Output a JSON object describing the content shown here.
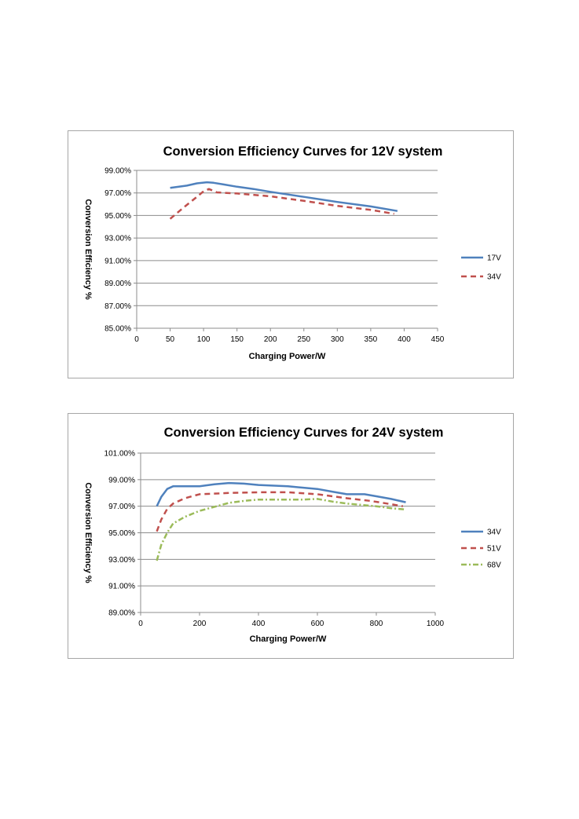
{
  "chart_data": [
    {
      "type": "line",
      "title": "Conversion Efficiency Curves for 12V system",
      "xlabel": "Charging Power/W",
      "ylabel": "Conversion Efficiency %",
      "xlim": [
        0,
        450
      ],
      "ylim": [
        85,
        99
      ],
      "xticks": [
        0,
        50,
        100,
        150,
        200,
        250,
        300,
        350,
        400,
        450
      ],
      "yticks": [
        85,
        87,
        89,
        91,
        93,
        95,
        97,
        99
      ],
      "ytick_labels": [
        "85.00%",
        "87.00%",
        "89.00%",
        "91.00%",
        "93.00%",
        "95.00%",
        "97.00%",
        "99.00%"
      ],
      "grid": "horizontal",
      "legend": "right",
      "series": [
        {
          "name": "17V",
          "color": "#4f81bd",
          "style": "solid",
          "x": [
            50,
            75,
            90,
            105,
            115,
            130,
            150,
            175,
            200,
            250,
            300,
            350,
            390
          ],
          "y": [
            97.45,
            97.65,
            97.85,
            97.95,
            97.9,
            97.75,
            97.55,
            97.35,
            97.1,
            96.65,
            96.2,
            95.8,
            95.4
          ]
        },
        {
          "name": "34V",
          "color": "#c0504d",
          "style": "dashed",
          "x": [
            50,
            70,
            90,
            100,
            108,
            120,
            150,
            200,
            250,
            300,
            350,
            385
          ],
          "y": [
            94.7,
            95.7,
            96.65,
            97.15,
            97.35,
            97.05,
            96.95,
            96.7,
            96.3,
            95.85,
            95.5,
            95.15
          ]
        }
      ]
    },
    {
      "type": "line",
      "title": "Conversion Efficiency Curves for 24V system",
      "xlabel": "Charging Power/W",
      "ylabel": "Conversion Efficiency %",
      "xlim": [
        0,
        1000
      ],
      "ylim": [
        89,
        101
      ],
      "xticks": [
        0,
        200,
        400,
        600,
        800,
        1000
      ],
      "yticks": [
        89,
        91,
        93,
        95,
        97,
        99,
        101
      ],
      "ytick_labels": [
        "89.00%",
        "91.00%",
        "93.00%",
        "95.00%",
        "97.00%",
        "99.00%",
        "101.00%"
      ],
      "grid": "horizontal",
      "legend": "right",
      "series": [
        {
          "name": "34V",
          "color": "#4f81bd",
          "style": "solid",
          "x": [
            55,
            70,
            90,
            110,
            150,
            200,
            250,
            300,
            350,
            400,
            500,
            600,
            650,
            700,
            760,
            800,
            850,
            900
          ],
          "y": [
            97.0,
            97.7,
            98.3,
            98.5,
            98.5,
            98.5,
            98.65,
            98.75,
            98.7,
            98.6,
            98.5,
            98.3,
            98.1,
            97.9,
            97.9,
            97.75,
            97.55,
            97.3
          ]
        },
        {
          "name": "51V",
          "color": "#c0504d",
          "style": "dashed",
          "x": [
            55,
            70,
            90,
            110,
            150,
            200,
            300,
            400,
            500,
            600,
            700,
            780,
            850,
            890
          ],
          "y": [
            95.1,
            96.0,
            96.8,
            97.2,
            97.6,
            97.9,
            98.0,
            98.05,
            98.05,
            97.9,
            97.6,
            97.4,
            97.15,
            97.0
          ]
        },
        {
          "name": "68V",
          "color": "#9bbb59",
          "style": "dashdot",
          "x": [
            55,
            70,
            90,
            110,
            150,
            200,
            300,
            350,
            400,
            500,
            550,
            600,
            650,
            700,
            800,
            850,
            900
          ],
          "y": [
            92.9,
            94.1,
            95.0,
            95.7,
            96.2,
            96.65,
            97.25,
            97.4,
            97.5,
            97.5,
            97.5,
            97.55,
            97.35,
            97.2,
            97.0,
            96.85,
            96.75
          ]
        }
      ]
    }
  ]
}
